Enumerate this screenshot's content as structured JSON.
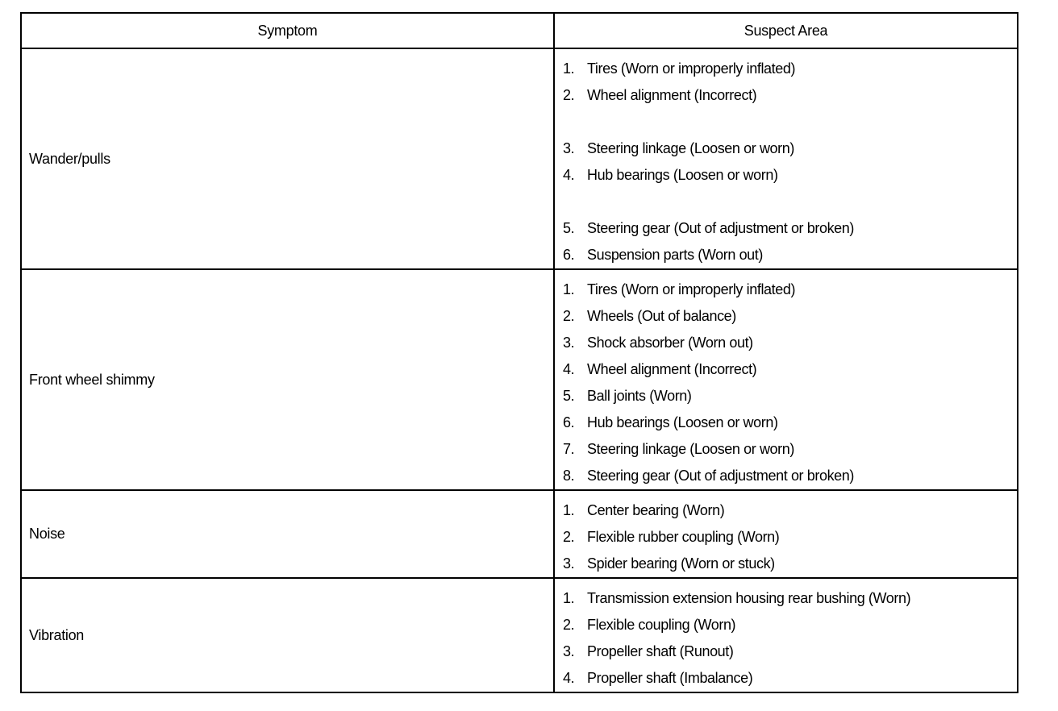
{
  "headers": {
    "symptom": "Symptom",
    "suspect_area": "Suspect Area"
  },
  "rows": [
    {
      "symptom": "Wander/pulls",
      "items": [
        {
          "n": "1.",
          "t": "Tires (Worn or improperly inflated)"
        },
        {
          "n": "2.",
          "t": "Wheel alignment (Incorrect)"
        },
        {
          "n": "3.",
          "t": "Steering linkage (Loosen or worn)"
        },
        {
          "n": "4.",
          "t": "Hub bearings (Loosen or worn)"
        },
        {
          "n": "5.",
          "t": "Steering gear (Out of adjustment or broken)"
        },
        {
          "n": "6.",
          "t": "Suspension parts (Worn out)"
        }
      ]
    },
    {
      "symptom": "Front wheel shimmy",
      "items": [
        {
          "n": "1.",
          "t": "Tires (Worn or improperly inflated)"
        },
        {
          "n": "2.",
          "t": "Wheels (Out of balance)"
        },
        {
          "n": "3.",
          "t": "Shock absorber (Worn out)"
        },
        {
          "n": "4.",
          "t": "Wheel alignment (Incorrect)"
        },
        {
          "n": "5.",
          "t": "Ball joints (Worn)"
        },
        {
          "n": "6.",
          "t": "Hub bearings (Loosen or worn)"
        },
        {
          "n": "7.",
          "t": "Steering linkage (Loosen or worn)"
        },
        {
          "n": "8.",
          "t": "Steering gear (Out of adjustment or broken)"
        }
      ]
    },
    {
      "symptom": "Noise",
      "items": [
        {
          "n": "1.",
          "t": "Center bearing (Worn)"
        },
        {
          "n": "2.",
          "t": "Flexible rubber coupling (Worn)"
        },
        {
          "n": "3.",
          "t": "Spider bearing (Worn or stuck)"
        }
      ]
    },
    {
      "symptom": "Vibration",
      "items": [
        {
          "n": "1.",
          "t": "Transmission extension housing rear bushing (Worn)"
        },
        {
          "n": "2.",
          "t": "Flexible coupling (Worn)"
        },
        {
          "n": "3.",
          "t": "Propeller shaft (Runout)"
        },
        {
          "n": "4.",
          "t": "Propeller shaft (Imbalance)"
        }
      ]
    }
  ]
}
